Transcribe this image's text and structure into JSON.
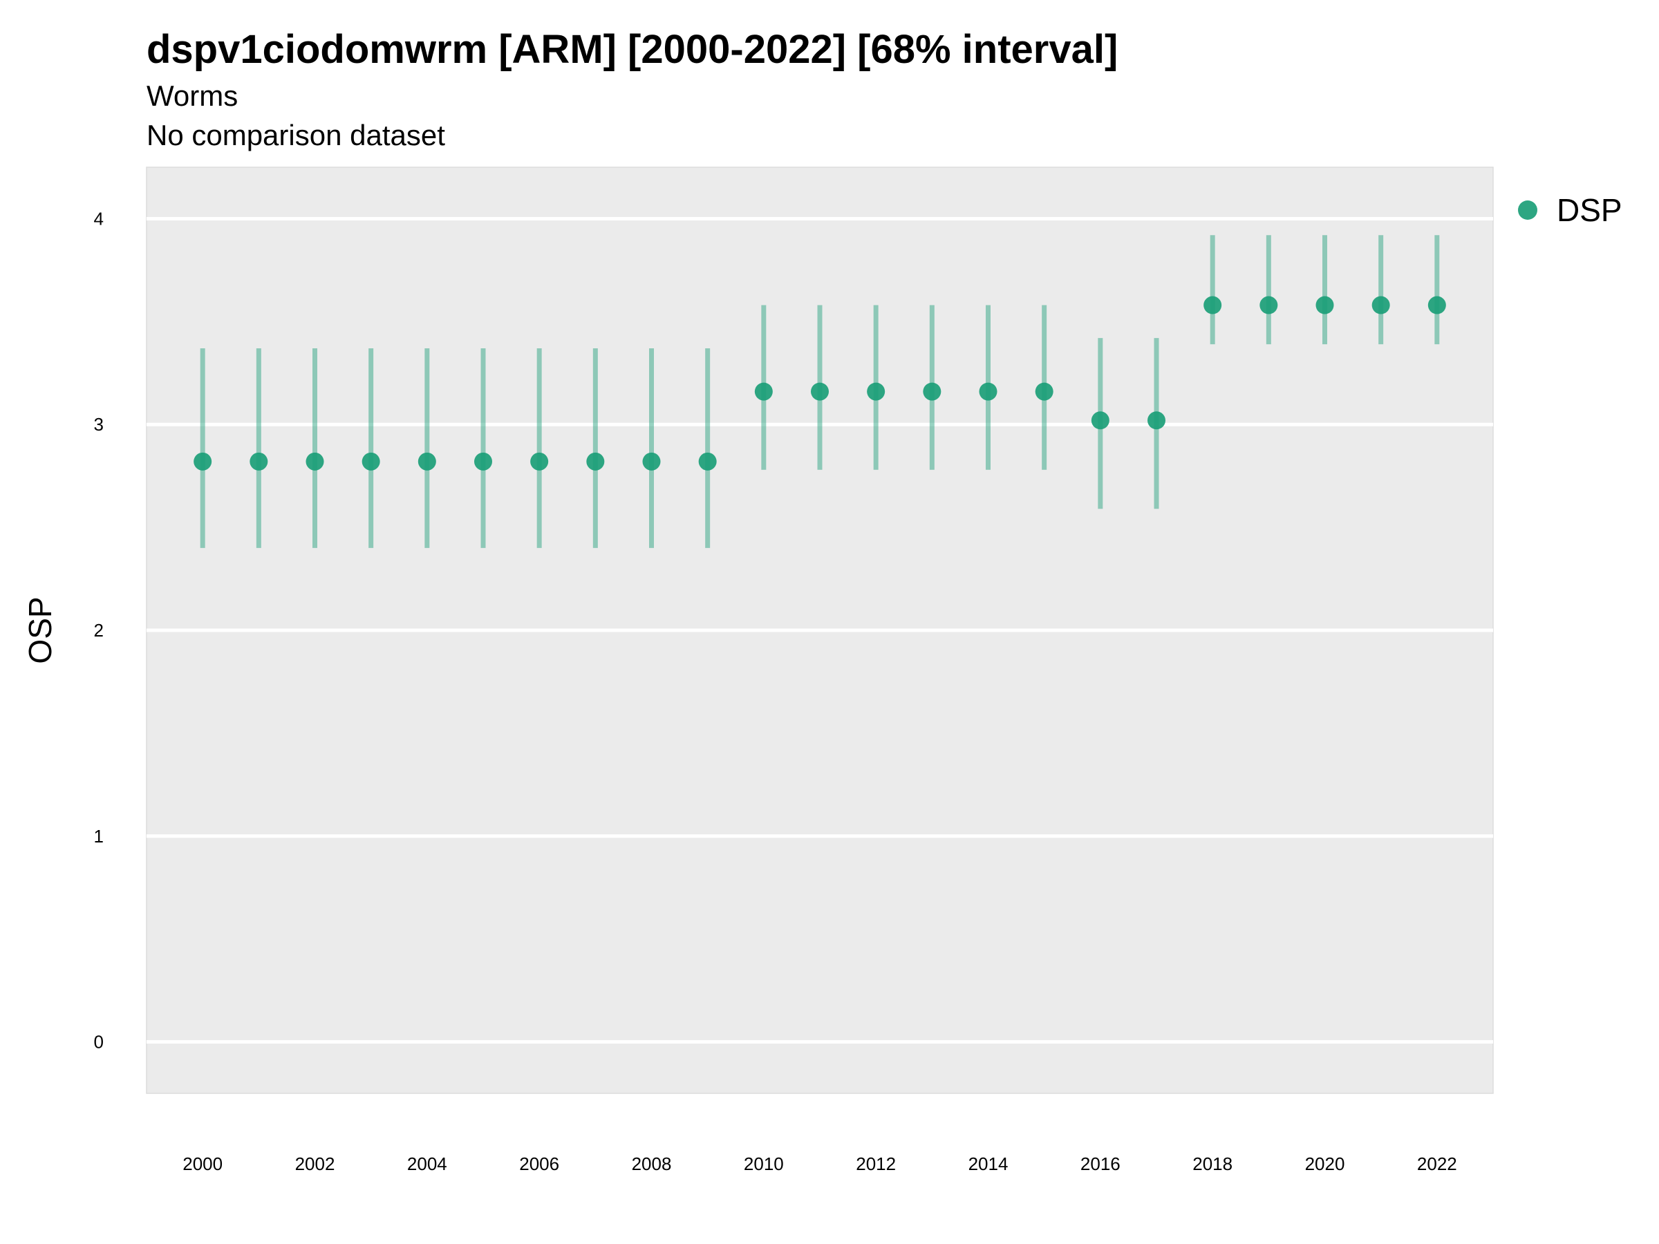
{
  "chart_data": {
    "type": "scatter",
    "title": "dspv1ciodomwrm [ARM] [2000-2022] [68% interval]",
    "subtitle": "Worms",
    "subtitle2": "No comparison dataset",
    "xlabel": "",
    "ylabel": "OSP",
    "xlim": [
      1999,
      2023
    ],
    "ylim": [
      -0.25,
      4.25
    ],
    "x_ticks": [
      "2000",
      "2002",
      "2004",
      "2006",
      "2008",
      "2010",
      "2012",
      "2014",
      "2016",
      "2018",
      "2020",
      "2022"
    ],
    "y_ticks": [
      "0",
      "1",
      "2",
      "3",
      "4"
    ],
    "grid": true,
    "legend_position": "right",
    "series": [
      {
        "name": "DSP",
        "color": "#1b9e77",
        "x": [
          2000,
          2001,
          2002,
          2003,
          2004,
          2005,
          2006,
          2007,
          2008,
          2009,
          2010,
          2011,
          2012,
          2013,
          2014,
          2015,
          2016,
          2017,
          2018,
          2019,
          2020,
          2021,
          2022
        ],
        "y": [
          2.82,
          2.82,
          2.82,
          2.82,
          2.82,
          2.82,
          2.82,
          2.82,
          2.82,
          2.82,
          3.16,
          3.16,
          3.16,
          3.16,
          3.16,
          3.16,
          3.02,
          3.02,
          3.58,
          3.58,
          3.58,
          3.58,
          3.58
        ],
        "lower": [
          2.4,
          2.4,
          2.4,
          2.4,
          2.4,
          2.4,
          2.4,
          2.4,
          2.4,
          2.4,
          2.78,
          2.78,
          2.78,
          2.78,
          2.78,
          2.78,
          2.59,
          2.59,
          3.39,
          3.39,
          3.39,
          3.39,
          3.39
        ],
        "upper": [
          3.37,
          3.37,
          3.37,
          3.37,
          3.37,
          3.37,
          3.37,
          3.37,
          3.37,
          3.37,
          3.58,
          3.58,
          3.58,
          3.58,
          3.58,
          3.58,
          3.42,
          3.42,
          3.92,
          3.92,
          3.92,
          3.92,
          3.92
        ]
      }
    ]
  }
}
